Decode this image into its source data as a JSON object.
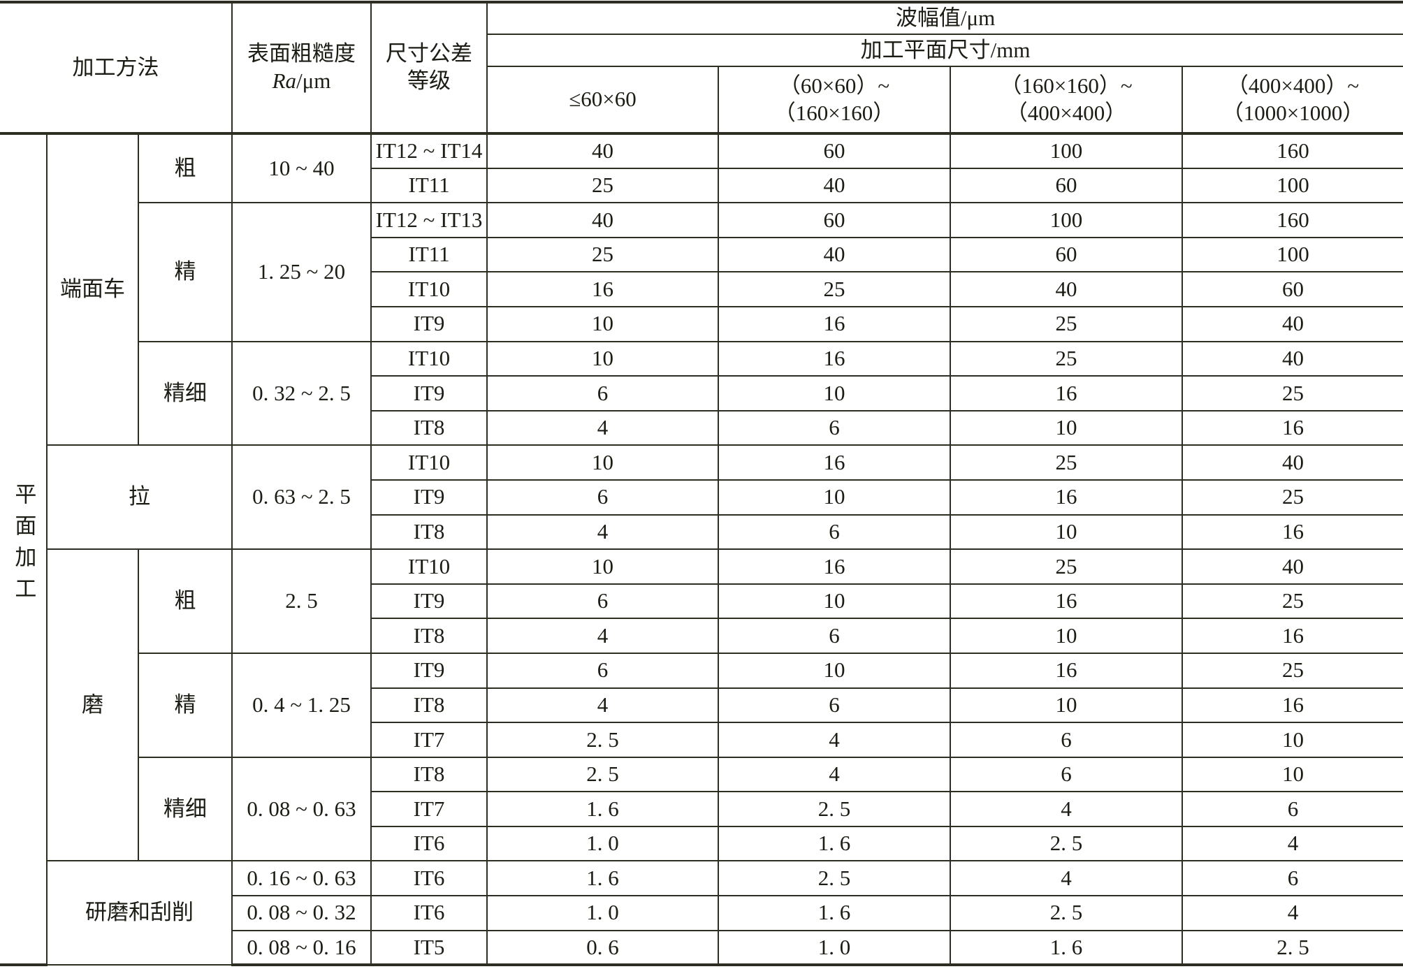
{
  "header": {
    "method": "加工方法",
    "roughness_line1": "表面粗糙度",
    "roughness_line2_italic": "Ra",
    "roughness_line2_unit": "/μm",
    "tolerance_line1": "尺寸公差",
    "tolerance_line2": "等级",
    "amplitude": "波幅值/μm",
    "plane_size": "加工平面尺寸/mm",
    "size_ranges": [
      {
        "line1": "≤60×60",
        "line2": ""
      },
      {
        "line1": "（60×60）~",
        "line2": "（160×160）"
      },
      {
        "line1": "（160×160）~",
        "line2": "（400×400）"
      },
      {
        "line1": "（400×400）~",
        "line2": "（1000×1000）"
      }
    ]
  },
  "category": "平面加工",
  "methods": [
    {
      "name": "端面车",
      "grades": [
        {
          "name": "粗",
          "ra": "10 ~ 40",
          "rows": [
            {
              "it": "IT12 ~ IT14",
              "v": [
                "40",
                "60",
                "100",
                "160"
              ]
            },
            {
              "it": "IT11",
              "v": [
                "25",
                "40",
                "60",
                "100"
              ]
            }
          ]
        },
        {
          "name": "精",
          "ra": "1. 25 ~ 20",
          "rows": [
            {
              "it": "IT12 ~ IT13",
              "v": [
                "40",
                "60",
                "100",
                "160"
              ]
            },
            {
              "it": "IT11",
              "v": [
                "25",
                "40",
                "60",
                "100"
              ]
            },
            {
              "it": "IT10",
              "v": [
                "16",
                "25",
                "40",
                "60"
              ]
            },
            {
              "it": "IT9",
              "v": [
                "10",
                "16",
                "25",
                "40"
              ]
            }
          ]
        },
        {
          "name": "精细",
          "ra": "0. 32 ~ 2. 5",
          "rows": [
            {
              "it": "IT10",
              "v": [
                "10",
                "16",
                "25",
                "40"
              ]
            },
            {
              "it": "IT9",
              "v": [
                "6",
                "10",
                "16",
                "25"
              ]
            },
            {
              "it": "IT8",
              "v": [
                "4",
                "6",
                "10",
                "16"
              ]
            }
          ]
        }
      ]
    },
    {
      "name": "拉",
      "grades": [
        {
          "name": "",
          "ra": "0. 63 ~ 2. 5",
          "rows": [
            {
              "it": "IT10",
              "v": [
                "10",
                "16",
                "25",
                "40"
              ]
            },
            {
              "it": "IT9",
              "v": [
                "6",
                "10",
                "16",
                "25"
              ]
            },
            {
              "it": "IT8",
              "v": [
                "4",
                "6",
                "10",
                "16"
              ]
            }
          ]
        }
      ]
    },
    {
      "name": "磨",
      "grades": [
        {
          "name": "粗",
          "ra": "2. 5",
          "rows": [
            {
              "it": "IT10",
              "v": [
                "10",
                "16",
                "25",
                "40"
              ]
            },
            {
              "it": "IT9",
              "v": [
                "6",
                "10",
                "16",
                "25"
              ]
            },
            {
              "it": "IT8",
              "v": [
                "4",
                "6",
                "10",
                "16"
              ]
            }
          ]
        },
        {
          "name": "精",
          "ra": "0. 4 ~ 1. 25",
          "rows": [
            {
              "it": "IT9",
              "v": [
                "6",
                "10",
                "16",
                "25"
              ]
            },
            {
              "it": "IT8",
              "v": [
                "4",
                "6",
                "10",
                "16"
              ]
            },
            {
              "it": "IT7",
              "v": [
                "2. 5",
                "4",
                "6",
                "10"
              ]
            }
          ]
        },
        {
          "name": "精细",
          "ra": "0. 08 ~ 0. 63",
          "rows": [
            {
              "it": "IT8",
              "v": [
                "2. 5",
                "4",
                "6",
                "10"
              ]
            },
            {
              "it": "IT7",
              "v": [
                "1. 6",
                "2. 5",
                "4",
                "6"
              ]
            },
            {
              "it": "IT6",
              "v": [
                "1. 0",
                "1. 6",
                "2. 5",
                "4"
              ]
            }
          ]
        }
      ]
    },
    {
      "name": "研磨和刮削",
      "grades": [
        {
          "name": "",
          "ra": "0. 16 ~ 0. 63",
          "rows": [
            {
              "it": "IT6",
              "v": [
                "1. 6",
                "2. 5",
                "4",
                "6"
              ]
            }
          ]
        },
        {
          "name": "",
          "ra": "0. 08 ~ 0. 32",
          "rows": [
            {
              "it": "IT6",
              "v": [
                "1. 0",
                "1. 6",
                "2. 5",
                "4"
              ]
            }
          ]
        },
        {
          "name": "",
          "ra": "0. 08 ~ 0. 16",
          "rows": [
            {
              "it": "IT5",
              "v": [
                "0. 6",
                "1. 0",
                "1. 6",
                "2. 5"
              ]
            }
          ]
        }
      ]
    }
  ]
}
